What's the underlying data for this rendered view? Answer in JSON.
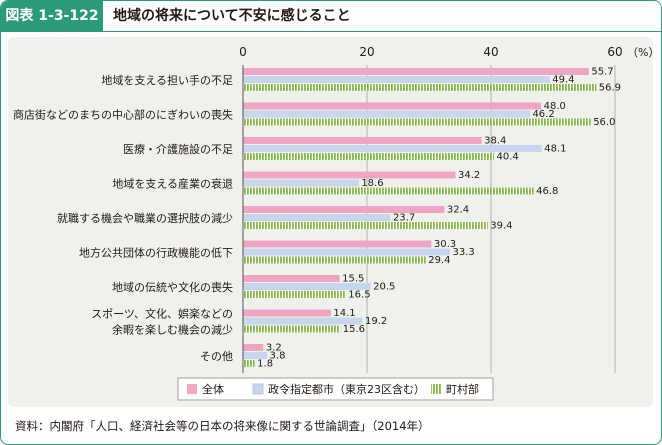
{
  "header": {
    "figure_label": "図表 1-3-122",
    "title": "地域の将来について不安に感じること"
  },
  "source": "資料：内閣府「人口、経済社会等の日本の将来像に関する世論調査」（2014年）",
  "colors": {
    "accent": "#2b9a78",
    "panel": "#eef1ec",
    "series_all": "#f0a6c2",
    "series_cities": "#c7d6ec",
    "series_towns": "#86b84a"
  },
  "chart_data": {
    "type": "bar",
    "orientation": "horizontal",
    "unit_label": "（%）",
    "xlim": [
      0,
      60
    ],
    "x_ticks": [
      "0",
      "20",
      "40",
      "60"
    ],
    "grid": "vertical lines at ticks",
    "legend_position": "bottom",
    "categories": [
      "地域を支える担い手の不足",
      "商店街などのまちの中心部のにぎわいの喪失",
      "医療・介護施設の不足",
      "地域を支える産業の衰退",
      "就職する機会や職業の選択肢の減少",
      "地方公共団体の行政機能の低下",
      "地域の伝統や文化の喪失",
      "スポーツ、文化、娯楽などの\n余暇を楽しむ機会の減少",
      "その他"
    ],
    "series": [
      {
        "name": "全体",
        "pattern": "solid",
        "values": [
          55.7,
          48.0,
          38.4,
          34.2,
          32.4,
          30.3,
          15.5,
          14.1,
          3.2
        ]
      },
      {
        "name": "政令指定都市（東京23区含む）",
        "pattern": "solid",
        "values": [
          49.4,
          46.2,
          48.1,
          18.6,
          23.7,
          33.3,
          20.5,
          19.2,
          3.8
        ]
      },
      {
        "name": "町村部",
        "pattern": "vertical-stripes",
        "values": [
          56.9,
          56.0,
          40.4,
          46.8,
          39.4,
          29.4,
          16.5,
          15.6,
          1.8
        ]
      }
    ],
    "value_labels": [
      [
        "55.7",
        "48.0",
        "38.4",
        "34.2",
        "32.4",
        "30.3",
        "15.5",
        "14.1",
        "3.2"
      ],
      [
        "49.4",
        "46.2",
        "48.1",
        "18.6",
        "23.7",
        "33.3",
        "20.5",
        "19.2",
        "3.8"
      ],
      [
        "56.9",
        "56.0",
        "40.4",
        "46.8",
        "39.4",
        "29.4",
        "16.5",
        "15.6",
        "1.8"
      ]
    ]
  }
}
